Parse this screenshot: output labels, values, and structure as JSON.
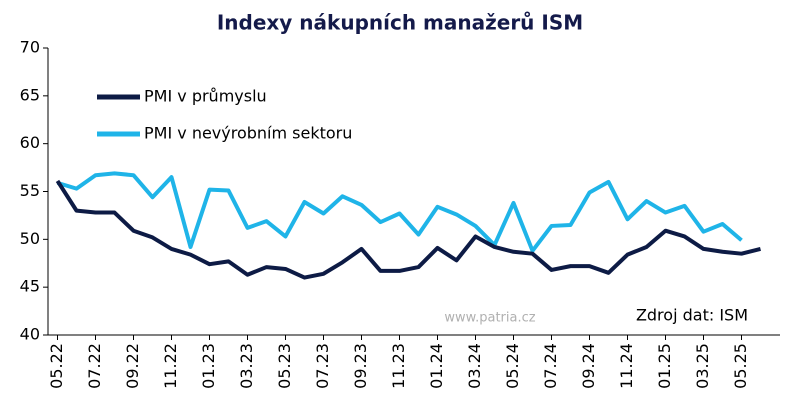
{
  "chart_data": {
    "type": "line",
    "title": "Indexy nákupních manažerů ISM",
    "categories": [
      "05.22",
      null,
      "07.22",
      null,
      "09.22",
      null,
      "11.22",
      null,
      "01.23",
      null,
      "03.23",
      null,
      "05.23",
      null,
      "07.23",
      null,
      "09.23",
      null,
      "11.23",
      null,
      "01.24",
      null,
      "03.24",
      null,
      "05.24",
      null,
      "07.24",
      null,
      "09.24",
      null,
      "11.24",
      null,
      "01.25",
      null,
      "03.25",
      null,
      "05.25",
      null
    ],
    "series": [
      {
        "name": "PMI v průmyslu",
        "color": "#0d1b45",
        "values": [
          56.1,
          53.0,
          52.8,
          52.8,
          50.9,
          50.2,
          49.0,
          48.4,
          47.4,
          47.7,
          46.3,
          47.1,
          46.9,
          46.0,
          46.4,
          47.6,
          49.0,
          46.7,
          46.7,
          47.1,
          49.1,
          47.8,
          50.3,
          49.2,
          48.7,
          48.5,
          46.8,
          47.2,
          47.2,
          46.5,
          48.4,
          49.2,
          50.9,
          50.3,
          49.0,
          48.7,
          48.5,
          49.0
        ]
      },
      {
        "name": "PMI v nevýrobním sektoru",
        "color": "#1fb4e8",
        "values": [
          55.9,
          55.3,
          56.7,
          56.9,
          56.7,
          54.4,
          56.5,
          49.2,
          55.2,
          55.1,
          51.2,
          51.9,
          50.3,
          53.9,
          52.7,
          54.5,
          53.6,
          51.8,
          52.7,
          50.5,
          53.4,
          52.6,
          51.4,
          49.4,
          53.8,
          48.8,
          51.4,
          51.5,
          54.9,
          56.0,
          52.1,
          54.0,
          52.8,
          53.5,
          50.8,
          51.6,
          49.9,
          null
        ]
      }
    ],
    "ylim": [
      40,
      70
    ],
    "yticks": [
      40,
      45,
      50,
      55,
      60,
      65,
      70
    ],
    "legend": "upper-left",
    "annotations": [
      "www.patria.cz",
      "Zdroj dat: ISM"
    ]
  }
}
